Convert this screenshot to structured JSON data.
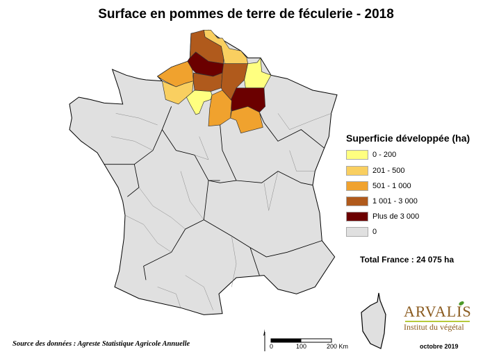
{
  "title": "Surface en pommes de terre de féculerie - 2018",
  "legend": {
    "title": "Superficie développée (ha)",
    "classes": [
      {
        "label": "0 - 200",
        "color": "#ffff80"
      },
      {
        "label": "201 - 500",
        "color": "#f9cf60"
      },
      {
        "label": "501 - 1 000",
        "color": "#f0a22e"
      },
      {
        "label": "1 001 - 3 000",
        "color": "#b05a1c"
      },
      {
        "label": "Plus de 3 000",
        "color": "#6b0000"
      },
      {
        "label": "0",
        "color": "#e0e0e0"
      }
    ]
  },
  "total": "Total France : 24 075 ha",
  "source": "Source des données : Agreste Statistique Agricole Annuelle",
  "date": "octobre 2019",
  "scale": {
    "labels": [
      "0",
      "100",
      "200 Km"
    ]
  },
  "logo": {
    "name": "ARVALIS",
    "tagline": "Institut du végétal",
    "accent": "#9bbf2a"
  }
}
